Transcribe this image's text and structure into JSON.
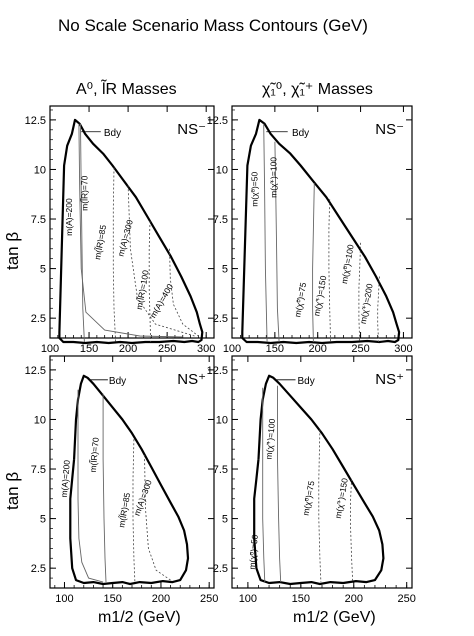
{
  "page": {
    "title": "No Scale Scenario Mass Contours (GeV)",
    "left_column_title": "A⁰, l̃R Masses",
    "right_column_title": "χ̃₁⁰, χ̃₁⁺ Masses",
    "y_label": "tan β",
    "x_label": "m1/2 (GeV)"
  },
  "chart_data": [
    {
      "type": "line",
      "panel": "top-left",
      "panel_tag": "NS⁻",
      "boundary_label": "Bdy",
      "xlim": [
        100,
        310
      ],
      "ylim": [
        1.5,
        13.2
      ],
      "xticks": [
        100,
        150,
        200,
        250,
        300
      ],
      "yticks": [
        2.5,
        5,
        7.5,
        10,
        12.5
      ],
      "series": [
        {
          "name": "Bdy",
          "style": "boundary",
          "x": [
            112,
            118,
            122,
            128,
            132,
            138,
            145,
            155,
            168,
            180,
            195,
            210,
            225,
            240,
            255,
            268,
            280,
            288,
            292,
            295,
            294,
            290,
            282,
            272,
            258,
            240,
            222,
            205,
            190,
            175,
            160,
            145,
            130,
            117,
            112,
            112
          ],
          "y": [
            1.8,
            10.2,
            11.2,
            11.8,
            12.5,
            12.3,
            11.8,
            11.3,
            10.8,
            10.2,
            9.4,
            8.6,
            7.6,
            6.6,
            5.6,
            4.6,
            3.6,
            2.8,
            2.2,
            1.8,
            1.4,
            1.3,
            1.35,
            1.3,
            1.35,
            1.3,
            1.3,
            1.25,
            1.3,
            1.25,
            1.3,
            1.25,
            1.3,
            1.3,
            1.5,
            1.8
          ]
        },
        {
          "name": "m(A)=200",
          "style": "solid",
          "x": [
            137,
            138,
            140,
            146,
            170,
            215,
            270
          ],
          "y": [
            12.3,
            9,
            5,
            2.8,
            1.9,
            1.6,
            1.55
          ]
        },
        {
          "name": "m(l̃R)=70",
          "style": "solid",
          "x": [
            139,
            140,
            141,
            142,
            144
          ],
          "y": [
            12.3,
            9,
            6,
            3,
            1.3
          ]
        },
        {
          "name": "m(l̃R)=85",
          "style": "dashed",
          "x": [
            182,
            181,
            181,
            182,
            184
          ],
          "y": [
            10.1,
            8,
            5,
            3,
            1.3
          ]
        },
        {
          "name": "m(A)=300",
          "style": "dashed",
          "x": [
            200,
            203,
            212,
            235,
            285
          ],
          "y": [
            9.2,
            6,
            3.5,
            2.2,
            1.6
          ]
        },
        {
          "name": "m(l̃R)=100",
          "style": "dashed",
          "x": [
            228,
            227,
            227,
            228,
            229
          ],
          "y": [
            7.4,
            6,
            4,
            2.5,
            1.3
          ]
        },
        {
          "name": "m(A)=400",
          "style": "dashed",
          "x": [
            253,
            254,
            258,
            270,
            290
          ],
          "y": [
            6,
            4.5,
            3.2,
            2.2,
            1.6
          ]
        }
      ],
      "annotations": [
        "m(A)=200",
        "m(l̃R)=70",
        "m(l̃R)=85",
        "m(A)=300",
        "m(l̃R)=100",
        "m(A)=400"
      ]
    },
    {
      "type": "line",
      "panel": "top-right",
      "panel_tag": "NS⁻",
      "boundary_label": "Bdy",
      "xlim": [
        100,
        310
      ],
      "ylim": [
        1.5,
        13.2
      ],
      "xticks": [
        100,
        150,
        200,
        250,
        300
      ],
      "yticks": [
        2.5,
        5,
        7.5,
        10,
        12.5
      ],
      "series": [
        {
          "name": "Bdy",
          "style": "boundary",
          "x": [
            112,
            118,
            122,
            128,
            132,
            138,
            145,
            155,
            168,
            180,
            195,
            210,
            225,
            240,
            255,
            268,
            280,
            288,
            292,
            295,
            294,
            290,
            282,
            272,
            258,
            240,
            222,
            205,
            190,
            175,
            160,
            145,
            130,
            117,
            112,
            112
          ],
          "y": [
            1.8,
            10.2,
            11.2,
            11.8,
            12.5,
            12.3,
            11.8,
            11.3,
            10.8,
            10.2,
            9.4,
            8.6,
            7.6,
            6.6,
            5.6,
            4.6,
            3.6,
            2.8,
            2.2,
            1.8,
            1.4,
            1.3,
            1.35,
            1.3,
            1.35,
            1.3,
            1.3,
            1.25,
            1.3,
            1.25,
            1.3,
            1.25,
            1.3,
            1.3,
            1.5,
            1.8
          ]
        },
        {
          "name": "m(χ̃⁰)=50",
          "style": "solid",
          "x": [
            137,
            138,
            139,
            140,
            141
          ],
          "y": [
            12.3,
            9,
            5,
            3,
            1.3
          ]
        },
        {
          "name": "m(χ̃⁺)=100",
          "style": "solid",
          "x": [
            150,
            151,
            152,
            153,
            155
          ],
          "y": [
            11.4,
            9,
            6,
            3,
            1.3
          ]
        },
        {
          "name": "m(χ̃⁰)=75",
          "style": "solid",
          "x": [
            196,
            195,
            194,
            194,
            195
          ],
          "y": [
            9.3,
            7,
            5,
            3,
            1.3
          ]
        },
        {
          "name": "m(χ̃⁺)=150",
          "style": "dashed",
          "x": [
            214,
            213,
            213,
            214,
            215
          ],
          "y": [
            8.5,
            7,
            5,
            3,
            1.3
          ]
        },
        {
          "name": "m(χ̃⁰)=100",
          "style": "dashed",
          "x": [
            250,
            249,
            248,
            248,
            249
          ],
          "y": [
            6.3,
            5,
            4,
            2.5,
            1.3
          ]
        },
        {
          "name": "m(χ̃⁺)=200",
          "style": "dashed",
          "x": [
            272,
            271,
            270,
            270,
            271
          ],
          "y": [
            4.6,
            3.8,
            3,
            2.2,
            1.3
          ]
        }
      ],
      "annotations": [
        "m(χ̃⁰)=50",
        "m(χ̃⁺)=100",
        "m(χ̃⁰)=75",
        "m(χ̃⁺)=150",
        "m(χ̃⁰)=100",
        "m(χ̃⁺)=200"
      ]
    },
    {
      "type": "line",
      "panel": "bottom-left",
      "panel_tag": "NS⁺",
      "boundary_label": "Bdy",
      "xlim": [
        85,
        255
      ],
      "ylim": [
        1.5,
        13.2
      ],
      "xticks": [
        100,
        150,
        200,
        250
      ],
      "yticks": [
        2.5,
        5,
        7.5,
        10,
        12.5
      ],
      "series": [
        {
          "name": "Bdy",
          "style": "boundary",
          "x": [
            110,
            112,
            114,
            117,
            120,
            124,
            130,
            140,
            150,
            160,
            170,
            180,
            190,
            200,
            210,
            218,
            224,
            227,
            228,
            226,
            220,
            212,
            202,
            190,
            178,
            168,
            160,
            150,
            140,
            130,
            120,
            112,
            108,
            106,
            106,
            108,
            110
          ],
          "y": [
            8,
            10,
            11,
            11.8,
            12.2,
            12.1,
            11.8,
            11.2,
            10.6,
            10,
            9.3,
            8.5,
            7.6,
            6.7,
            5.8,
            5.1,
            4.4,
            3.7,
            3,
            2.4,
            1.9,
            1.8,
            1.85,
            1.75,
            1.8,
            1.7,
            1.8,
            1.75,
            1.7,
            1.8,
            1.75,
            1.9,
            2.5,
            4,
            6,
            7,
            8
          ]
        },
        {
          "name": "m(A)=200",
          "style": "solid",
          "x": [
            114,
            114,
            115,
            118,
            125,
            140
          ],
          "y": [
            11.5,
            6,
            4,
            2.8,
            2,
            1.8
          ]
        },
        {
          "name": "m(l̃R)=70",
          "style": "solid",
          "x": [
            140,
            140,
            141,
            142,
            143
          ],
          "y": [
            11.3,
            8,
            5,
            3,
            1.8
          ]
        },
        {
          "name": "m(l̃R)=85",
          "style": "dashed",
          "x": [
            172,
            171,
            171,
            172,
            173
          ],
          "y": [
            9,
            7,
            5,
            3,
            1.8
          ]
        },
        {
          "name": "m(A)=300",
          "style": "dashed",
          "x": [
            183,
            184,
            187,
            195,
            210
          ],
          "y": [
            8.2,
            5.5,
            3.5,
            2.4,
            1.9
          ]
        }
      ],
      "annotations": [
        "m(A)=200",
        "m(l̃R)=70",
        "m(l̃R)=85",
        "m(A)=300"
      ]
    },
    {
      "type": "line",
      "panel": "bottom-right",
      "panel_tag": "NS⁺",
      "boundary_label": "Bdy",
      "xlim": [
        85,
        255
      ],
      "ylim": [
        1.5,
        13.2
      ],
      "xticks": [
        100,
        150,
        200,
        250
      ],
      "yticks": [
        2.5,
        5,
        7.5,
        10,
        12.5
      ],
      "series": [
        {
          "name": "Bdy",
          "style": "boundary",
          "x": [
            110,
            112,
            114,
            117,
            120,
            124,
            130,
            140,
            150,
            160,
            170,
            180,
            190,
            200,
            210,
            218,
            224,
            227,
            228,
            226,
            220,
            212,
            202,
            190,
            178,
            168,
            160,
            150,
            140,
            130,
            120,
            112,
            108,
            106,
            106,
            108,
            110
          ],
          "y": [
            8,
            10,
            11,
            11.8,
            12.2,
            12.1,
            11.8,
            11.2,
            10.6,
            10,
            9.3,
            8.5,
            7.6,
            6.7,
            5.8,
            5.1,
            4.4,
            3.7,
            3,
            2.4,
            1.9,
            1.8,
            1.85,
            1.75,
            1.8,
            1.7,
            1.8,
            1.75,
            1.7,
            1.8,
            1.75,
            1.9,
            2.5,
            4,
            6,
            7,
            8
          ]
        },
        {
          "name": "m(χ̃⁰)=50",
          "style": "solid",
          "x": [
            114,
            114,
            114,
            115,
            116
          ],
          "y": [
            11.6,
            8,
            5,
            3,
            1.8
          ]
        },
        {
          "name": "m(χ̃⁺)=100",
          "style": "solid",
          "x": [
            128,
            128,
            129,
            130,
            131
          ],
          "y": [
            11.7,
            8,
            5,
            3,
            1.8
          ]
        },
        {
          "name": "m(χ̃⁰)=75",
          "style": "dashed",
          "x": [
            168,
            167,
            167,
            168,
            169
          ],
          "y": [
            9.5,
            7,
            5,
            3,
            1.8
          ]
        },
        {
          "name": "m(χ̃⁺)=150",
          "style": "dashed",
          "x": [
            198,
            197,
            197,
            198,
            199
          ],
          "y": [
            7,
            6,
            4.5,
            3,
            1.8
          ]
        }
      ],
      "annotations": [
        "m(χ̃⁰)=50",
        "m(χ̃⁺)=100",
        "m(χ̃⁰)=75",
        "m(χ̃⁺)=150"
      ]
    }
  ]
}
